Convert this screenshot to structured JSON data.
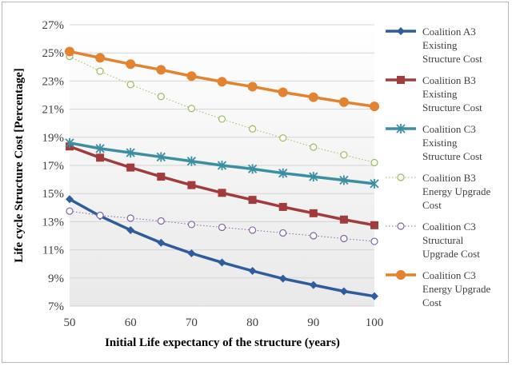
{
  "chart_data": {
    "type": "line",
    "xlabel": "Initial Life expectancy of the structure (years)",
    "ylabel": "Life cycle Structure Cost  [Percentage]",
    "x": [
      50,
      55,
      60,
      65,
      70,
      75,
      80,
      85,
      90,
      95,
      100
    ],
    "x_ticks": [
      50,
      60,
      70,
      80,
      90,
      100
    ],
    "y_ticks": [
      "7%",
      "9%",
      "11%",
      "13%",
      "15%",
      "17%",
      "19%",
      "21%",
      "23%",
      "25%",
      "27%"
    ],
    "xlim": [
      50,
      100
    ],
    "ylim": [
      7,
      27
    ],
    "y_unit": "%",
    "grid": "horizontal",
    "legend_position": "right",
    "series": [
      {
        "name": "Coalition A3 Existing Structure Cost",
        "legend_lines": [
          "Coalition A3",
          "Existing",
          "Structure Cost"
        ],
        "color": "#2e5d9e",
        "marker": "diamond",
        "line": "solid",
        "values": [
          14.6,
          13.4,
          12.4,
          11.5,
          10.75,
          10.1,
          9.5,
          8.95,
          8.5,
          8.05,
          7.7
        ]
      },
      {
        "name": "Coalition B3 Existing Structure Cost",
        "legend_lines": [
          "Coalition B3",
          "Existing",
          "Structure Cost"
        ],
        "color": "#a23b3b",
        "marker": "square",
        "line": "solid",
        "values": [
          18.35,
          17.55,
          16.85,
          16.2,
          15.6,
          15.05,
          14.55,
          14.05,
          13.6,
          13.15,
          12.75
        ]
      },
      {
        "name": "Coalition C3 Existing Structure Cost",
        "legend_lines": [
          "Coalition C3",
          "Existing",
          "Structure Cost"
        ],
        "color": "#3a8fa3",
        "marker": "asterisk",
        "line": "solid",
        "values": [
          18.6,
          18.2,
          17.9,
          17.6,
          17.3,
          17.0,
          16.75,
          16.45,
          16.2,
          15.95,
          15.7
        ]
      },
      {
        "name": "Coalition B3 Energy Upgrade Cost",
        "legend_lines": [
          "Coalition B3",
          "Energy Upgrade",
          "Cost"
        ],
        "color": "#9bbb59",
        "marker": "circle-open",
        "line": "dotted",
        "values": [
          24.75,
          23.7,
          22.75,
          21.9,
          21.05,
          20.3,
          19.6,
          18.95,
          18.3,
          17.75,
          17.2
        ]
      },
      {
        "name": "Coalition C3 Structural Upgrade Cost",
        "legend_lines": [
          "Coalition C3",
          "Structural",
          "Upgrade Cost"
        ],
        "color": "#8064a2",
        "marker": "circle-open",
        "line": "dotted",
        "values": [
          13.75,
          13.45,
          13.25,
          13.05,
          12.8,
          12.6,
          12.4,
          12.2,
          12.0,
          11.8,
          11.6
        ]
      },
      {
        "name": "Coalition C3 Energy Upgrade Cost",
        "legend_lines": [
          "Coalition C3",
          "Energy Upgrade",
          "Cost"
        ],
        "color": "#e3832f",
        "marker": "circle",
        "line": "solid",
        "values": [
          25.1,
          24.65,
          24.2,
          23.8,
          23.35,
          22.95,
          22.6,
          22.2,
          21.85,
          21.5,
          21.2
        ]
      }
    ]
  }
}
